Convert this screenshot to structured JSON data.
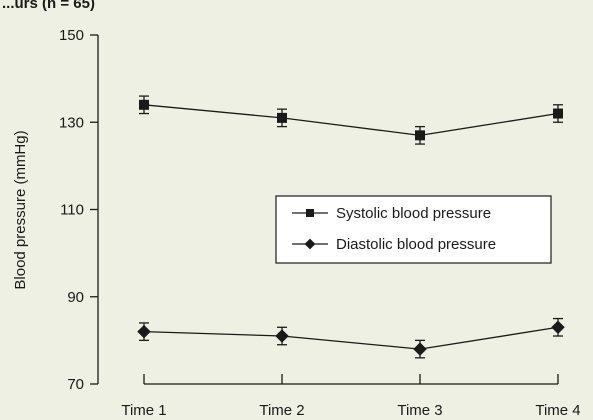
{
  "heading_fragment": "...urs (n = 65)",
  "colors": {
    "background": "#eef0e4",
    "ink": "#1a1a1a"
  },
  "chart_data": {
    "type": "line",
    "title": "",
    "categories": [
      "Time 1",
      "Time 2",
      "Time 3",
      "Time 4"
    ],
    "ylabel": "Blood pressure (mmHg)",
    "xlabel": "",
    "ylim": [
      70,
      150
    ],
    "yticks": [
      70,
      90,
      110,
      130,
      150
    ],
    "grid": false,
    "legend_position": "center-right",
    "series": [
      {
        "name": "Systolic blood pressure",
        "marker": "square",
        "values": [
          134,
          131,
          127,
          132
        ],
        "error": [
          2,
          2,
          2,
          2
        ]
      },
      {
        "name": "Diastolic blood pressure",
        "marker": "diamond",
        "values": [
          82,
          81,
          78,
          83
        ],
        "error": [
          2,
          2,
          2,
          2
        ]
      }
    ]
  }
}
